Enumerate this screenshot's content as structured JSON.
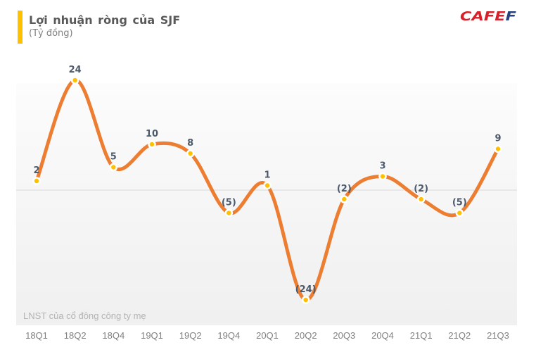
{
  "header": {
    "title": "Lợi nhuận ròng của SJF",
    "subtitle": "(Tỷ đồng)",
    "accent_bar_color": "#FFC000"
  },
  "logo": {
    "red_text": "CAFE",
    "blue_text": "F",
    "red_color": "#D6212A",
    "blue_color": "#27427C"
  },
  "chart_data": {
    "type": "line",
    "title": "Lợi nhuận ròng của SJF",
    "unit_label": "(Tỷ đồng)",
    "ylabel": "Tỷ đồng",
    "xlabel": "",
    "categories": [
      "18Q1",
      "18Q2",
      "18Q4",
      "19Q1",
      "19Q2",
      "19Q4",
      "20Q1",
      "20Q2",
      "20Q3",
      "20Q4",
      "21Q1",
      "21Q2",
      "21Q3"
    ],
    "values": [
      2,
      24,
      5,
      10,
      8,
      -5,
      1,
      -24,
      -2,
      3,
      -2,
      -5,
      9
    ],
    "point_labels": [
      "2",
      "24",
      "5",
      "10",
      "8",
      "(5)",
      "1",
      "(24)",
      "(2)",
      "3",
      "(2)",
      "(5)",
      "9"
    ],
    "note": "LNST của cổ đông công ty mẹ",
    "smooth": true,
    "legend": "none",
    "grid": "zero-line-only",
    "ylim": [
      -29,
      24
    ],
    "line_color": "#ED7D31",
    "marker_color": "#FFC000",
    "marker_border_color": "#FFFFFF",
    "label_color": "#4D5A6B",
    "axis_label_color": "#808080",
    "zero_line_color": "#D9D9D9",
    "plot_bg_color": "#F3F3F3"
  }
}
